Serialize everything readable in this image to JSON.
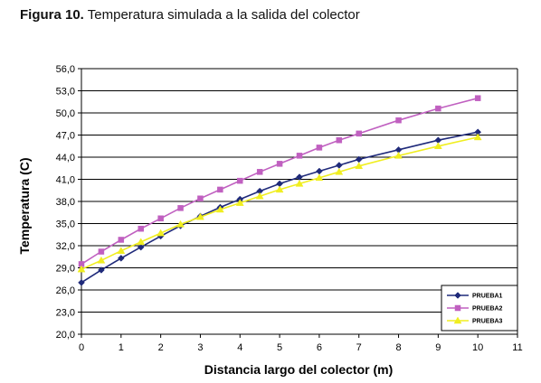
{
  "caption": {
    "label": "Figura 10.",
    "text": "Temperatura simulada a la salida del colector"
  },
  "chart_data": {
    "type": "line",
    "xlabel": "Distancia largo del colector (m)",
    "ylabel": "Temperatura (C)",
    "xlim": [
      0,
      11
    ],
    "ylim": [
      20,
      56
    ],
    "xticks": [
      "0",
      "1",
      "2",
      "3",
      "4",
      "5",
      "6",
      "7",
      "8",
      "9",
      "10",
      "11"
    ],
    "yticks": [
      "20,0",
      "23,0",
      "26,0",
      "29,0",
      "32,0",
      "35,0",
      "38,0",
      "41,0",
      "44,0",
      "47,0",
      "50,0",
      "53,0",
      "56,0"
    ],
    "grid": true,
    "legend_position": "bottom-right",
    "series": [
      {
        "name": "PRUEBA1",
        "color": "#1f2a7a",
        "marker": "diamond",
        "x": [
          0,
          0.5,
          1,
          1.5,
          2,
          2.5,
          3,
          3.5,
          4,
          4.5,
          5,
          5.5,
          6,
          6.5,
          7,
          8,
          9,
          10
        ],
        "y": [
          27.0,
          28.7,
          30.3,
          31.8,
          33.3,
          34.7,
          36.0,
          37.2,
          38.3,
          39.4,
          40.4,
          41.3,
          42.1,
          42.9,
          43.7,
          45.0,
          46.3,
          47.4
        ]
      },
      {
        "name": "PRUEBA2",
        "color": "#c060c0",
        "marker": "square",
        "x": [
          0,
          0.5,
          1,
          1.5,
          2,
          2.5,
          3,
          3.5,
          4,
          4.5,
          5,
          5.5,
          6,
          6.5,
          7,
          8,
          9,
          10
        ],
        "y": [
          29.5,
          31.2,
          32.8,
          34.3,
          35.7,
          37.1,
          38.4,
          39.6,
          40.8,
          42.0,
          43.1,
          44.2,
          45.3,
          46.3,
          47.2,
          49.0,
          50.6,
          52.0
        ]
      },
      {
        "name": "PRUEBA3",
        "color": "#f0ee20",
        "marker": "triangle",
        "x": [
          0,
          0.5,
          1,
          1.5,
          2,
          2.5,
          3,
          3.5,
          4,
          4.5,
          5,
          5.5,
          6,
          6.5,
          7,
          8,
          9,
          10
        ],
        "y": [
          28.8,
          30.0,
          31.3,
          32.5,
          33.7,
          34.9,
          35.9,
          36.9,
          37.8,
          38.7,
          39.6,
          40.4,
          41.2,
          42.0,
          42.8,
          44.2,
          45.5,
          46.7
        ]
      }
    ]
  }
}
